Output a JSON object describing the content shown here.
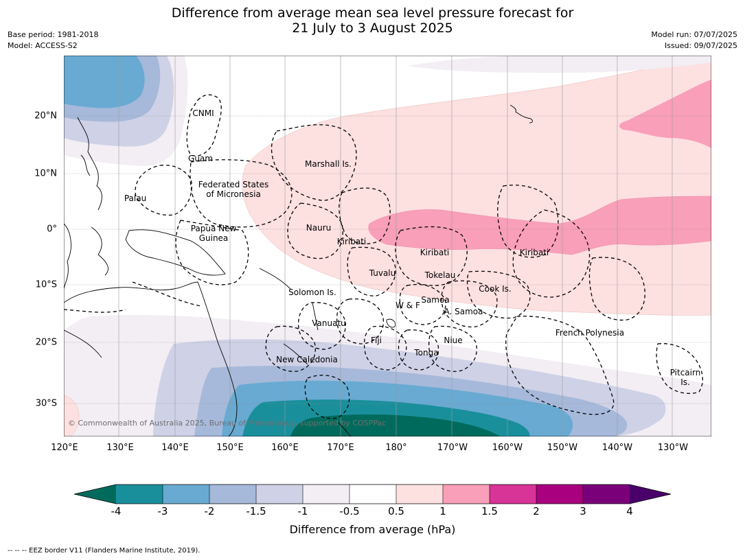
{
  "title_line1": "Difference from average mean sea level pressure forecast for",
  "title_line2": "21 July to 3 August 2025",
  "meta": {
    "base_period": "Base period: 1981-2018",
    "model": "Model: ACCESS-S2",
    "model_run": "Model run: 07/07/2025",
    "issued": "Issued: 09/07/2025"
  },
  "copyright": "© Commonwealth of Australia 2025, Bureau of Meteorology, supported by COSPPac",
  "eez_note": "--  --  -- EEZ border V11 (Flanders Marine Institute, 2019).",
  "lat_labels": [
    "20°N",
    "10°N",
    "0°",
    "10°S",
    "20°S",
    "30°S"
  ],
  "lon_labels": [
    "120°E",
    "130°E",
    "140°E",
    "150°E",
    "160°E",
    "170°E",
    "180°",
    "170°W",
    "160°W",
    "150°W",
    "140°W",
    "130°W"
  ],
  "regions": [
    "CNMI",
    "Guam",
    "Marshall Is.",
    "Palau",
    "Federated States\nof Micronesia",
    "Papua New\nGuinea",
    "Nauru",
    "Kiribati",
    "Kiribati",
    "Kiribati",
    "Tuvalu",
    "Tokelau",
    "Solomon Is.",
    "W & F",
    "Samoa",
    "A. Samoa",
    "Cook Is.",
    "Vanuatu",
    "Fiji",
    "Niue",
    "Tonga",
    "French Polynesia",
    "New Caledonia",
    "Pitcairn\nIs."
  ],
  "colorbar": {
    "label": "Difference from average (hPa)",
    "ticks": [
      "-4",
      "-3",
      "-2",
      "-1.5",
      "-1",
      "-0.5",
      "0.5",
      "1",
      "1.5",
      "2",
      "3",
      "4"
    ],
    "colors": {
      "lt_m4": "#006b5c",
      "m4_m3": "#1a8f9c",
      "m3_m2": "#68aad2",
      "m2_m15": "#a6b9da",
      "m15_m1": "#cfd1e6",
      "m1_m05": "#f2eef4",
      "m05_05": "#ffffff",
      "p05_1": "#fde0e0",
      "p1_15": "#f99fb9",
      "p15_2": "#d83397",
      "p2_3": "#a8007e",
      "p3_4": "#7a0079",
      "gt_4": "#4a006a"
    }
  }
}
